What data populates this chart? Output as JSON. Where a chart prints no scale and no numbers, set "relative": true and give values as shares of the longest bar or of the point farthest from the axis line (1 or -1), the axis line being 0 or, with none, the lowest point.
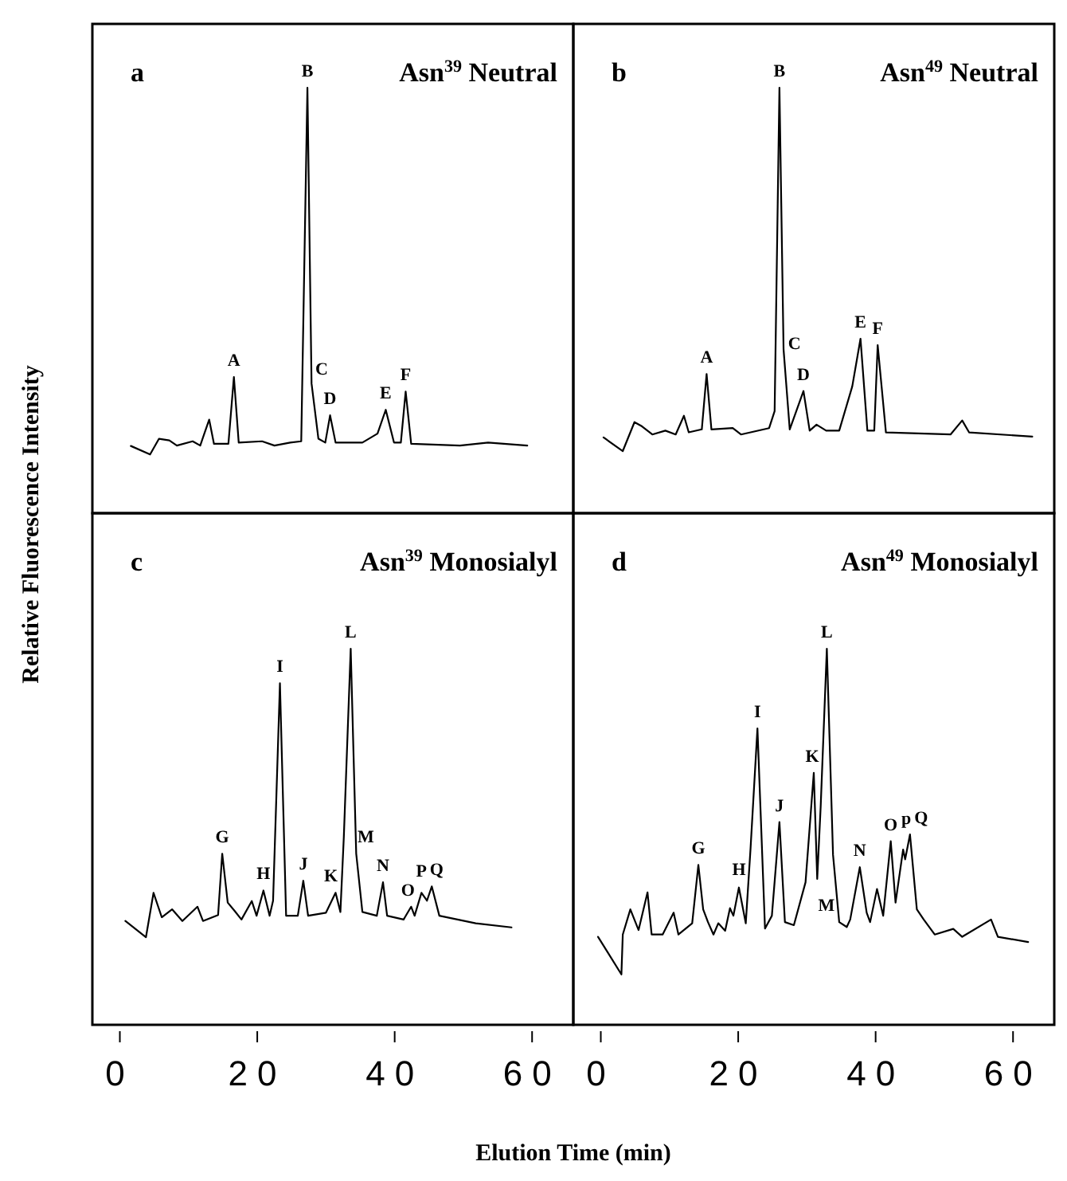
{
  "chart_data": [
    {
      "type": "line",
      "title": "Asn$^{39}$ Neutral",
      "ylabel": "Relative Fluorescence Intensity",
      "relative": true,
      "color": "#000000",
      "xlim": [
        -4,
        66
      ],
      "tick_labels": false,
      "x": [
        1.6,
        4.4,
        5.7,
        7.2,
        8.3,
        10.6,
        11.7,
        13.0,
        13.7,
        15.8,
        16.6,
        17.3,
        20.7,
        22.5,
        24.8,
        26.4,
        27.3,
        27.9,
        28.9,
        29.9,
        30.6,
        31.4,
        35.3,
        37.5,
        38.7,
        39.9,
        40.9,
        41.6,
        42.4,
        49.5,
        53.6,
        59.3
      ],
      "values": [
        0.158,
        0.138,
        0.175,
        0.171,
        0.159,
        0.169,
        0.159,
        0.22,
        0.163,
        0.163,
        0.32,
        0.166,
        0.169,
        0.159,
        0.166,
        0.169,
        1,
        0.305,
        0.175,
        0.166,
        0.23,
        0.166,
        0.166,
        0.187,
        0.243,
        0.166,
        0.166,
        0.286,
        0.163,
        0.159,
        0.166,
        0.159
      ],
      "annotations": [
        "a",
        {
          "text": "A",
          "x": 16.6,
          "y": 0.32
        },
        {
          "text": "B",
          "x": 27.3,
          "y": 1
        },
        {
          "text": "C",
          "x": 28.9,
          "y": 0.3
        },
        {
          "text": "D",
          "x": 30.6,
          "y": 0.23
        },
        {
          "text": "E",
          "x": 38.7,
          "y": 0.243
        },
        {
          "text": "F",
          "x": 41.6,
          "y": 0.286
        }
      ]
    },
    {
      "type": "line",
      "title": "Asn$^{49}$ Neutral",
      "relative": true,
      "color": "#000000",
      "xlim": [
        -4,
        66
      ],
      "tick_labels": false,
      "x": [
        0.4,
        3.2,
        4.9,
        6.0,
        7.5,
        9.4,
        10.9,
        12.1,
        12.8,
        14.7,
        15.4,
        16.1,
        19.2,
        20.4,
        24.5,
        25.3,
        26.0,
        26.6,
        27.5,
        29.5,
        30.4,
        31.4,
        32.8,
        34.7,
        36.6,
        37.8,
        38.8,
        39.8,
        40.3,
        41.5,
        50.9,
        52.6,
        53.6,
        62.8
      ],
      "values": [
        0.178,
        0.146,
        0.214,
        0.204,
        0.185,
        0.194,
        0.185,
        0.229,
        0.19,
        0.197,
        0.327,
        0.197,
        0.2,
        0.185,
        0.2,
        0.24,
        1,
        0.385,
        0.197,
        0.287,
        0.194,
        0.208,
        0.194,
        0.194,
        0.298,
        0.41,
        0.194,
        0.194,
        0.395,
        0.19,
        0.185,
        0.218,
        0.19,
        0.18
      ],
      "annotations": [
        "b",
        {
          "text": "A",
          "x": 15.4,
          "y": 0.327
        },
        {
          "text": "B",
          "x": 26.0,
          "y": 1
        },
        {
          "text": "C",
          "x": 26.8,
          "y": 0.36
        },
        {
          "text": "D",
          "x": 29.5,
          "y": 0.287
        },
        {
          "text": "E",
          "x": 37.8,
          "y": 0.41
        },
        {
          "text": "F",
          "x": 40.3,
          "y": 0.395
        }
      ]
    },
    {
      "type": "line",
      "title": "Asn$^{39}$ Monosialyl",
      "xlabel": "Elution Time (min)",
      "relative": true,
      "color": "#000000",
      "xlim": [
        -4,
        66
      ],
      "xticks": [
        0,
        20,
        40,
        60
      ],
      "tick_labels": "x",
      "x": [
        0.8,
        3.8,
        4.9,
        6.1,
        7.6,
        9.1,
        11.3,
        12.1,
        14.3,
        14.9,
        15.7,
        16.7,
        17.7,
        19.2,
        19.9,
        20.9,
        21.8,
        22.3,
        23.3,
        24.2,
        25.9,
        26.7,
        27.4,
        30.0,
        31.4,
        32.1,
        32.6,
        33.6,
        34.4,
        35.3,
        37.4,
        38.3,
        38.9,
        41.3,
        42.4,
        42.9,
        43.9,
        44.7,
        45.4,
        46.5,
        51.8,
        57.0
      ],
      "values": [
        0.276,
        0.233,
        0.351,
        0.286,
        0.307,
        0.276,
        0.314,
        0.276,
        0.292,
        0.455,
        0.325,
        0.303,
        0.28,
        0.329,
        0.29,
        0.357,
        0.29,
        0.33,
        0.908,
        0.29,
        0.29,
        0.383,
        0.29,
        0.298,
        0.351,
        0.3,
        0.5,
        1,
        0.455,
        0.3,
        0.29,
        0.379,
        0.29,
        0.28,
        0.314,
        0.29,
        0.351,
        0.33,
        0.368,
        0.29,
        0.27,
        0.259
      ],
      "annotations": [
        "c",
        {
          "text": "G",
          "x": 14.9,
          "y": 0.455
        },
        {
          "text": "H",
          "x": 20.9,
          "y": 0.357
        },
        {
          "text": "I",
          "x": 23.3,
          "y": 0.908
        },
        {
          "text": "J",
          "x": 26.7,
          "y": 0.383
        },
        {
          "text": "K",
          "x": 31.4,
          "y": 0.351
        },
        {
          "text": "L",
          "x": 33.6,
          "y": 1
        },
        {
          "text": "M",
          "x": 34.4,
          "y": 0.455
        },
        {
          "text": "N",
          "x": 38.3,
          "y": 0.379
        },
        {
          "text": "O",
          "x": 42.4,
          "y": 0.314
        },
        {
          "text": "P",
          "x": 43.9,
          "y": 0.351
        },
        {
          "text": "Q",
          "x": 45.4,
          "y": 0.368
        }
      ]
    },
    {
      "type": "line",
      "title": "Asn$^{49}$ Monosialyl",
      "relative": true,
      "color": "#000000",
      "xlim": [
        -4,
        66
      ],
      "xticks": [
        0,
        20,
        40,
        60
      ],
      "tick_labels": "x",
      "x": [
        -0.4,
        3.0,
        3.2,
        4.3,
        5.5,
        6.8,
        7.4,
        9.0,
        10.6,
        11.3,
        13.3,
        14.2,
        14.9,
        15.6,
        16.4,
        17.1,
        18.1,
        18.8,
        19.3,
        20.1,
        21.1,
        21.8,
        22.8,
        23.9,
        24.9,
        26.0,
        26.8,
        28.1,
        29.8,
        31.0,
        31.5,
        32.0,
        32.9,
        33.8,
        34.7,
        35.8,
        36.3,
        37.7,
        38.7,
        39.2,
        40.2,
        41.1,
        42.2,
        42.9,
        44.0,
        44.3,
        45.0,
        46.0,
        47.0,
        48.6,
        51.3,
        52.6,
        56.8,
        57.8,
        62.2
      ],
      "values": [
        0.234,
        0.134,
        0.24,
        0.307,
        0.252,
        0.352,
        0.24,
        0.24,
        0.298,
        0.24,
        0.27,
        0.425,
        0.307,
        0.273,
        0.24,
        0.27,
        0.25,
        0.31,
        0.29,
        0.365,
        0.27,
        0.47,
        0.788,
        0.256,
        0.29,
        0.539,
        0.273,
        0.265,
        0.379,
        0.67,
        0.388,
        0.579,
        1,
        0.452,
        0.273,
        0.26,
        0.28,
        0.419,
        0.298,
        0.273,
        0.361,
        0.29,
        0.488,
        0.325,
        0.466,
        0.44,
        0.506,
        0.307,
        0.28,
        0.24,
        0.255,
        0.234,
        0.28,
        0.234,
        0.22
      ],
      "annotations": [
        "d",
        {
          "text": "G",
          "x": 14.2,
          "y": 0.425
        },
        {
          "text": "H",
          "x": 20.1,
          "y": 0.365
        },
        {
          "text": "I",
          "x": 22.8,
          "y": 0.788
        },
        {
          "text": "J",
          "x": 26.0,
          "y": 0.539
        },
        {
          "text": "K",
          "x": 31.0,
          "y": 0.67
        },
        {
          "text": "L",
          "x": 32.9,
          "y": 1
        },
        {
          "text": "M",
          "x": 34.7,
          "y": 0.273
        },
        {
          "text": "N",
          "x": 37.7,
          "y": 0.419
        },
        {
          "text": "O",
          "x": 42.2,
          "y": 0.488
        },
        {
          "text": "p",
          "x": 44.0,
          "y": 0.466
        },
        {
          "text": "Q",
          "x": 45.0,
          "y": 0.506
        }
      ]
    }
  ]
}
